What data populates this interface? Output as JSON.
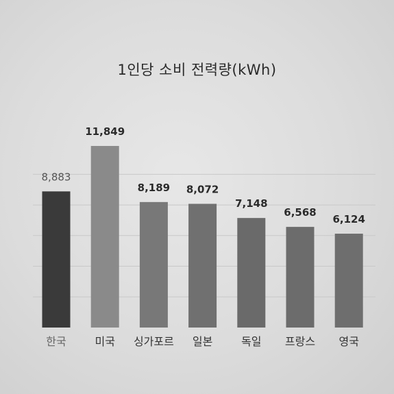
{
  "chart_data": {
    "type": "bar",
    "title": "1인당 소비 전력량(kWh)",
    "categories": [
      "한국",
      "미국",
      "싱가포르",
      "일본",
      "독일",
      "프랑스",
      "영국"
    ],
    "values": [
      8883,
      11849,
      8189,
      8072,
      7148,
      6568,
      6124
    ],
    "value_labels": [
      "8,883",
      "11,849",
      "8,189",
      "8,072",
      "7,148",
      "6,568",
      "6,124"
    ],
    "xlabel": "",
    "ylabel": "",
    "ylim": [
      0,
      12500
    ],
    "grid": true,
    "legend": "none",
    "colors": {
      "highlight": "#3a3a3a",
      "bars": [
        "#3a3a3a",
        "#8a8a8a",
        "#787878",
        "#707070",
        "#6a6a6a",
        "#6c6c6c",
        "#6e6e6e"
      ],
      "grid": "#c8c8c8"
    }
  }
}
